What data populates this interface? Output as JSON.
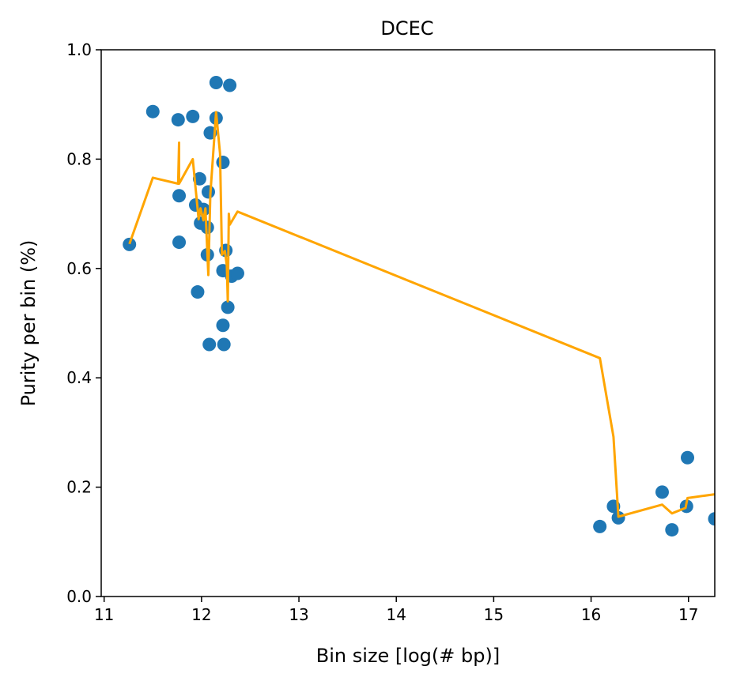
{
  "chart_data": {
    "type": "scatter",
    "title": "DCEC",
    "xlabel": "Bin size [log(# bp)]",
    "ylabel": "Purity per bin (%)",
    "xlim": [
      10.97,
      17.27
    ],
    "ylim": [
      0.0,
      1.0
    ],
    "xticks": [
      11,
      12,
      13,
      14,
      15,
      16,
      17
    ],
    "yticks": [
      0.0,
      0.2,
      0.4,
      0.6,
      0.8,
      1.0
    ],
    "ytick_labels": [
      "0.0",
      "0.2",
      "0.4",
      "0.6",
      "0.8",
      "1.0"
    ],
    "grid": false,
    "colors": {
      "scatter": "#1f77b4",
      "line": "#ffa500"
    },
    "series": [
      {
        "kind": "scatter",
        "x": [
          11.26,
          11.5,
          11.76,
          11.77,
          11.77,
          11.91,
          11.98,
          11.96,
          11.99,
          11.94,
          12.02,
          12.07,
          12.06,
          12.06,
          12.09,
          12.08,
          12.15,
          12.15,
          12.22,
          12.22,
          12.22,
          12.23,
          12.25,
          12.29,
          12.27,
          12.31,
          12.37,
          16.09,
          16.23,
          16.28,
          16.73,
          16.83,
          16.98,
          16.99,
          17.27
        ],
        "y": [
          0.644,
          0.887,
          0.872,
          0.733,
          0.648,
          0.878,
          0.764,
          0.557,
          0.683,
          0.716,
          0.708,
          0.74,
          0.675,
          0.625,
          0.848,
          0.461,
          0.94,
          0.875,
          0.794,
          0.596,
          0.496,
          0.461,
          0.633,
          0.935,
          0.529,
          0.586,
          0.591,
          0.128,
          0.165,
          0.144,
          0.191,
          0.122,
          0.165,
          0.254,
          0.142
        ]
      },
      {
        "kind": "line",
        "x": [
          11.26,
          11.5,
          11.76,
          11.77,
          11.77,
          11.91,
          11.97,
          11.99,
          12.02,
          12.04,
          12.07,
          12.09,
          12.15,
          12.19,
          12.21,
          12.24,
          12.26,
          12.27,
          12.28,
          12.29,
          12.37,
          16.09,
          16.23,
          16.28,
          16.73,
          16.83,
          16.97,
          16.99,
          17.27
        ],
        "y": [
          0.645,
          0.766,
          0.755,
          0.83,
          0.755,
          0.8,
          0.69,
          0.71,
          0.688,
          0.71,
          0.588,
          0.735,
          0.886,
          0.81,
          0.625,
          0.632,
          0.605,
          0.54,
          0.7,
          0.68,
          0.704,
          0.436,
          0.292,
          0.146,
          0.168,
          0.152,
          0.162,
          0.18,
          0.187
        ]
      }
    ]
  }
}
